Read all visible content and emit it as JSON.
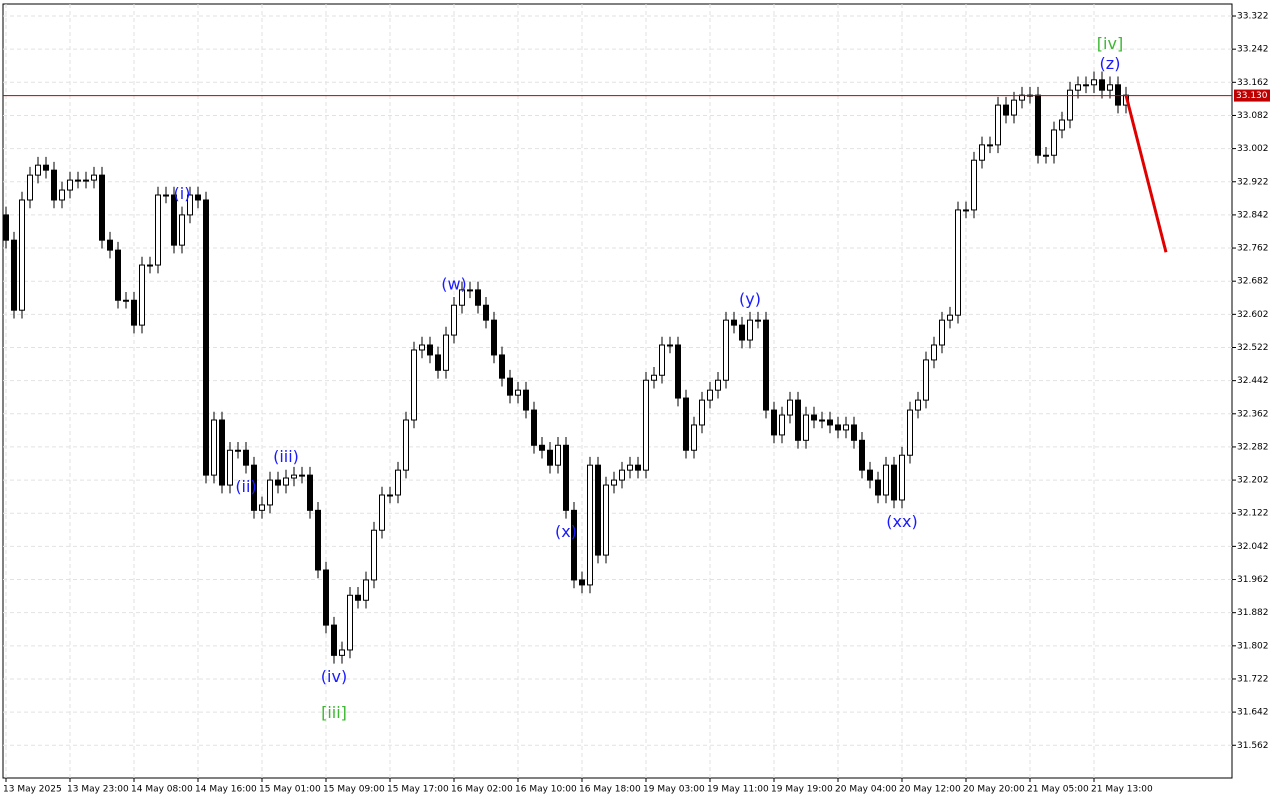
{
  "chart_data": {
    "type": "candlestick",
    "categories": [
      "13 May 2025",
      null,
      null,
      null,
      null,
      null,
      null,
      null,
      "13 May 23:00",
      null,
      null,
      null,
      null,
      null,
      null,
      null,
      "14 May 08:00",
      null,
      null,
      null,
      null,
      null,
      null,
      null,
      "14 May 16:00",
      null,
      null,
      null,
      null,
      null,
      null,
      null,
      "15 May 01:00",
      null,
      null,
      null,
      null,
      null,
      null,
      null,
      "15 May 09:00",
      null,
      null,
      null,
      null,
      null,
      null,
      null,
      "15 May 17:00",
      null,
      null,
      null,
      null,
      null,
      null,
      null,
      "16 May 02:00",
      null,
      null,
      null,
      null,
      null,
      null,
      null,
      "16 May 10:00",
      null,
      null,
      null,
      null,
      null,
      null,
      null,
      "16 May 18:00",
      null,
      null,
      null,
      null,
      null,
      null,
      null,
      "19 May 03:00",
      null,
      null,
      null,
      null,
      null,
      null,
      null,
      "19 May 11:00",
      null,
      null,
      null,
      null,
      null,
      null,
      null,
      "19 May 19:00",
      null,
      null,
      null,
      null,
      null,
      null,
      null,
      "20 May 04:00",
      null,
      null,
      null,
      null,
      null,
      null,
      null,
      "20 May 12:00",
      null,
      null,
      null,
      null,
      null,
      null,
      null,
      "20 May 20:00",
      null,
      null,
      null,
      null,
      null,
      null,
      null,
      "21 May 05:00",
      null,
      null,
      null,
      null,
      null,
      null,
      null,
      "21 May 13:00",
      null,
      null,
      null,
      null
    ],
    "open": [
      32.842,
      32.781,
      32.612,
      32.878,
      32.938,
      32.962,
      32.95,
      32.878,
      32.902,
      32.926,
      32.926,
      32.926,
      32.938,
      32.781,
      32.757,
      32.636,
      32.636,
      32.576,
      32.721,
      32.721,
      32.89,
      32.89,
      32.769,
      32.842,
      32.89,
      32.878,
      32.214,
      32.347,
      32.19,
      32.274,
      32.274,
      32.238,
      32.129,
      32.142,
      32.202,
      32.19,
      32.207,
      32.214,
      32.214,
      32.129,
      31.985,
      31.852,
      31.779,
      31.792,
      31.924,
      31.912,
      31.961,
      32.081,
      32.166,
      32.166,
      32.226,
      32.347,
      32.516,
      32.528,
      32.504,
      32.467,
      32.552,
      32.624,
      32.661,
      32.661,
      32.624,
      32.588,
      32.504,
      32.448,
      32.407,
      32.419,
      32.371,
      32.286,
      32.274,
      32.238,
      32.286,
      32.129,
      31.961,
      31.949,
      32.238,
      32.021,
      32.19,
      32.202,
      32.226,
      32.238,
      32.226,
      32.443,
      32.455,
      32.528,
      32.528,
      32.4,
      32.274,
      32.335,
      32.395,
      32.419,
      32.443,
      32.588,
      32.576,
      32.54,
      32.588,
      32.588,
      32.371,
      32.311,
      32.359,
      32.395,
      32.298,
      32.359,
      32.347,
      32.347,
      32.335,
      32.323,
      32.335,
      32.298,
      32.226,
      32.202,
      32.166,
      32.238,
      32.154,
      32.262,
      32.371,
      32.395,
      32.492,
      32.528,
      32.588,
      32.6,
      32.854,
      32.854,
      32.974,
      33.011,
      33.011,
      33.107,
      33.083,
      33.119,
      33.131,
      33.131,
      32.986,
      32.986,
      33.047,
      33.071,
      33.143,
      33.156,
      33.156,
      33.168,
      33.143,
      33.156,
      33.107
    ],
    "high": [
      32.862,
      32.801,
      32.898,
      32.958,
      32.982,
      32.982,
      32.97,
      32.922,
      32.946,
      32.946,
      32.946,
      32.958,
      32.958,
      32.801,
      32.777,
      32.656,
      32.656,
      32.741,
      32.741,
      32.91,
      32.91,
      32.91,
      32.862,
      32.91,
      32.91,
      32.898,
      32.367,
      32.367,
      32.294,
      32.294,
      32.294,
      32.258,
      32.162,
      32.222,
      32.222,
      32.227,
      32.234,
      32.234,
      32.234,
      32.149,
      32.005,
      31.872,
      31.812,
      31.944,
      31.944,
      31.981,
      32.101,
      32.186,
      32.186,
      32.246,
      32.367,
      32.536,
      32.548,
      32.548,
      32.524,
      32.572,
      32.644,
      32.681,
      32.681,
      32.681,
      32.644,
      32.608,
      32.524,
      32.468,
      32.439,
      32.439,
      32.391,
      32.306,
      32.294,
      32.306,
      32.306,
      32.149,
      31.981,
      32.258,
      32.258,
      32.21,
      32.222,
      32.246,
      32.258,
      32.258,
      32.463,
      32.475,
      32.548,
      32.548,
      32.548,
      32.42,
      32.355,
      32.415,
      32.439,
      32.463,
      32.608,
      32.608,
      32.596,
      32.608,
      32.608,
      32.608,
      32.391,
      32.379,
      32.415,
      32.415,
      32.379,
      32.379,
      32.367,
      32.367,
      32.355,
      32.355,
      32.355,
      32.318,
      32.246,
      32.222,
      32.258,
      32.258,
      32.282,
      32.391,
      32.415,
      32.512,
      32.548,
      32.608,
      32.62,
      32.874,
      32.874,
      32.994,
      33.031,
      33.031,
      33.127,
      33.127,
      33.139,
      33.151,
      33.151,
      33.151,
      33.006,
      33.067,
      33.091,
      33.163,
      33.176,
      33.176,
      33.188,
      33.188,
      33.176,
      33.176,
      33.151
    ],
    "low": [
      32.761,
      32.592,
      32.592,
      32.858,
      32.918,
      32.93,
      32.858,
      32.858,
      32.882,
      32.906,
      32.906,
      32.906,
      32.761,
      32.737,
      32.616,
      32.616,
      32.556,
      32.556,
      32.701,
      32.701,
      32.87,
      32.749,
      32.749,
      32.822,
      32.858,
      32.194,
      32.194,
      32.17,
      32.17,
      32.254,
      32.218,
      32.109,
      32.109,
      32.122,
      32.17,
      32.17,
      32.187,
      32.194,
      32.109,
      31.965,
      31.832,
      31.759,
      31.759,
      31.772,
      31.892,
      31.892,
      31.941,
      32.061,
      32.146,
      32.146,
      32.206,
      32.327,
      32.496,
      32.484,
      32.447,
      32.447,
      32.532,
      32.604,
      32.641,
      32.604,
      32.568,
      32.484,
      32.428,
      32.387,
      32.387,
      32.351,
      32.266,
      32.254,
      32.218,
      32.218,
      32.109,
      31.941,
      31.929,
      31.929,
      32.001,
      32.001,
      32.17,
      32.182,
      32.206,
      32.206,
      32.206,
      32.423,
      32.435,
      32.508,
      32.38,
      32.254,
      32.254,
      32.315,
      32.375,
      32.399,
      32.423,
      32.556,
      32.52,
      32.52,
      32.568,
      32.351,
      32.291,
      32.291,
      32.339,
      32.278,
      32.278,
      32.327,
      32.327,
      32.315,
      32.303,
      32.303,
      32.278,
      32.206,
      32.182,
      32.146,
      32.146,
      32.134,
      32.134,
      32.242,
      32.351,
      32.375,
      32.472,
      32.508,
      32.568,
      32.58,
      32.834,
      32.834,
      32.954,
      32.991,
      32.991,
      33.063,
      33.063,
      33.099,
      33.111,
      32.966,
      32.966,
      32.966,
      33.027,
      33.051,
      33.123,
      33.136,
      33.136,
      33.123,
      33.123,
      33.087,
      33.087
    ],
    "close": [
      32.781,
      32.612,
      32.878,
      32.938,
      32.962,
      32.95,
      32.878,
      32.902,
      32.926,
      32.926,
      32.926,
      32.938,
      32.781,
      32.757,
      32.636,
      32.636,
      32.576,
      32.721,
      32.721,
      32.89,
      32.89,
      32.769,
      32.842,
      32.89,
      32.878,
      32.214,
      32.347,
      32.19,
      32.274,
      32.274,
      32.238,
      32.129,
      32.142,
      32.202,
      32.19,
      32.207,
      32.214,
      32.214,
      32.129,
      31.985,
      31.852,
      31.779,
      31.792,
      31.924,
      31.912,
      31.961,
      32.081,
      32.166,
      32.166,
      32.226,
      32.347,
      32.516,
      32.528,
      32.504,
      32.467,
      32.552,
      32.624,
      32.661,
      32.661,
      32.624,
      32.588,
      32.504,
      32.448,
      32.407,
      32.419,
      32.371,
      32.286,
      32.274,
      32.238,
      32.286,
      32.129,
      31.961,
      31.949,
      32.238,
      32.021,
      32.19,
      32.202,
      32.226,
      32.238,
      32.226,
      32.443,
      32.455,
      32.528,
      32.528,
      32.4,
      32.274,
      32.335,
      32.395,
      32.419,
      32.443,
      32.588,
      32.576,
      32.54,
      32.588,
      32.588,
      32.371,
      32.311,
      32.359,
      32.395,
      32.298,
      32.359,
      32.347,
      32.347,
      32.335,
      32.323,
      32.335,
      32.298,
      32.226,
      32.202,
      32.166,
      32.238,
      32.154,
      32.262,
      32.371,
      32.395,
      32.492,
      32.528,
      32.588,
      32.6,
      32.854,
      32.854,
      32.974,
      33.011,
      33.011,
      33.107,
      33.083,
      33.119,
      33.131,
      33.131,
      32.986,
      32.986,
      33.047,
      33.071,
      33.143,
      33.156,
      33.156,
      33.168,
      33.143,
      33.156,
      33.107,
      33.131
    ],
    "ylim": [
      31.483,
      33.351
    ],
    "yticks": [
      33.322,
      33.242,
      33.162,
      33.082,
      33.002,
      32.922,
      32.842,
      32.762,
      32.682,
      32.602,
      32.522,
      32.442,
      32.362,
      32.282,
      32.202,
      32.122,
      32.042,
      31.962,
      31.882,
      31.802,
      31.722,
      31.642,
      31.562
    ],
    "grid": true,
    "up_color": "#ffffff",
    "down_color": "#000000",
    "current_price": {
      "value": 33.13,
      "label": "33.130",
      "color": "#c00000"
    },
    "forecast": {
      "x": [
        140,
        145
      ],
      "values": [
        33.131,
        32.752
      ],
      "color": "#e00000"
    },
    "annotations": [
      {
        "text": "(i)",
        "index": 22,
        "position": "above",
        "color": "#1a1aff"
      },
      {
        "text": "(ii)",
        "index": 30,
        "position": "below",
        "color": "#1a1aff"
      },
      {
        "text": "(iii)",
        "index": 35,
        "position": "above",
        "color": "#1a1aff"
      },
      {
        "text": "(iv)",
        "index": 41,
        "position": "below",
        "color": "#1a1aff"
      },
      {
        "text": "[iii]",
        "index": 41,
        "position": "below",
        "color": "#3cb832"
      },
      {
        "text": "(w)",
        "index": 56,
        "position": "above",
        "color": "#1a1aff"
      },
      {
        "text": "(x)",
        "index": 70,
        "position": "below",
        "color": "#1a1aff"
      },
      {
        "text": "(y)",
        "index": 93,
        "position": "above",
        "color": "#1a1aff"
      },
      {
        "text": "(xx)",
        "index": 112,
        "position": "below",
        "color": "#1a1aff"
      },
      {
        "text": "(z)",
        "index": 138,
        "position": "above",
        "color": "#1a1aff"
      },
      {
        "text": "[iv]",
        "index": 138,
        "position": "above",
        "color": "#3cb832"
      }
    ]
  }
}
